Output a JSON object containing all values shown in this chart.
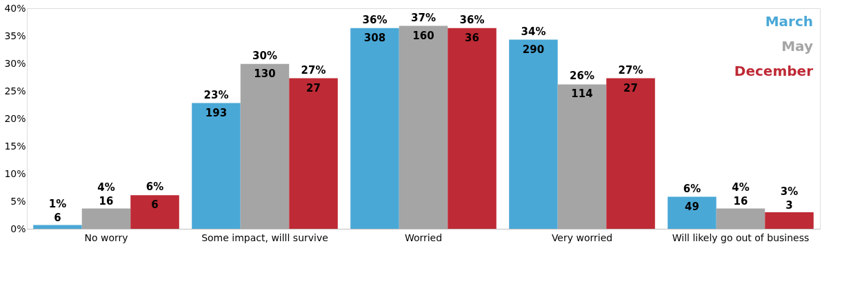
{
  "chart_data": {
    "type": "bar",
    "categories": [
      "No worry",
      "Some impact, willl survive",
      "Worried",
      "Very worried",
      "Will likely go out of business"
    ],
    "series": [
      {
        "name": "March",
        "color": "#4aa8d6",
        "values": [
          0.7,
          22.8,
          36.4,
          34.3,
          5.8
        ],
        "value_labels": [
          "1%",
          "23%",
          "36%",
          "34%",
          "6%"
        ]
      },
      {
        "name": "May",
        "color": "#a5a5a5",
        "values": [
          3.7,
          29.9,
          36.8,
          26.2,
          3.7
        ],
        "value_labels": [
          "4%",
          "30%",
          "37%",
          "26%",
          "4%"
        ]
      },
      {
        "name": "December",
        "color": "#be2a35",
        "values": [
          6.1,
          27.3,
          36.4,
          27.3,
          3.0
        ],
        "value_labels": [
          "6%",
          "27%",
          "36%",
          "27%",
          "3%"
        ]
      }
    ],
    "annotations": [
      "6",
      "193",
      "308",
      "290",
      "49",
      "16",
      "130",
      "160",
      "114",
      "16",
      "6",
      "27",
      "36",
      "27",
      "3"
    ],
    "ylim": [
      0,
      40
    ],
    "yticks": [
      {
        "value": 0,
        "label": "0%"
      },
      {
        "value": 5,
        "label": "5%"
      },
      {
        "value": 10,
        "label": "10%"
      },
      {
        "value": 15,
        "label": "15%"
      },
      {
        "value": 20,
        "label": "20%"
      },
      {
        "value": 25,
        "label": "25%"
      },
      {
        "value": 30,
        "label": "30%"
      },
      {
        "value": 35,
        "label": "35%"
      },
      {
        "value": 40,
        "label": "40%"
      }
    ],
    "grid": false,
    "legend": "top right"
  }
}
